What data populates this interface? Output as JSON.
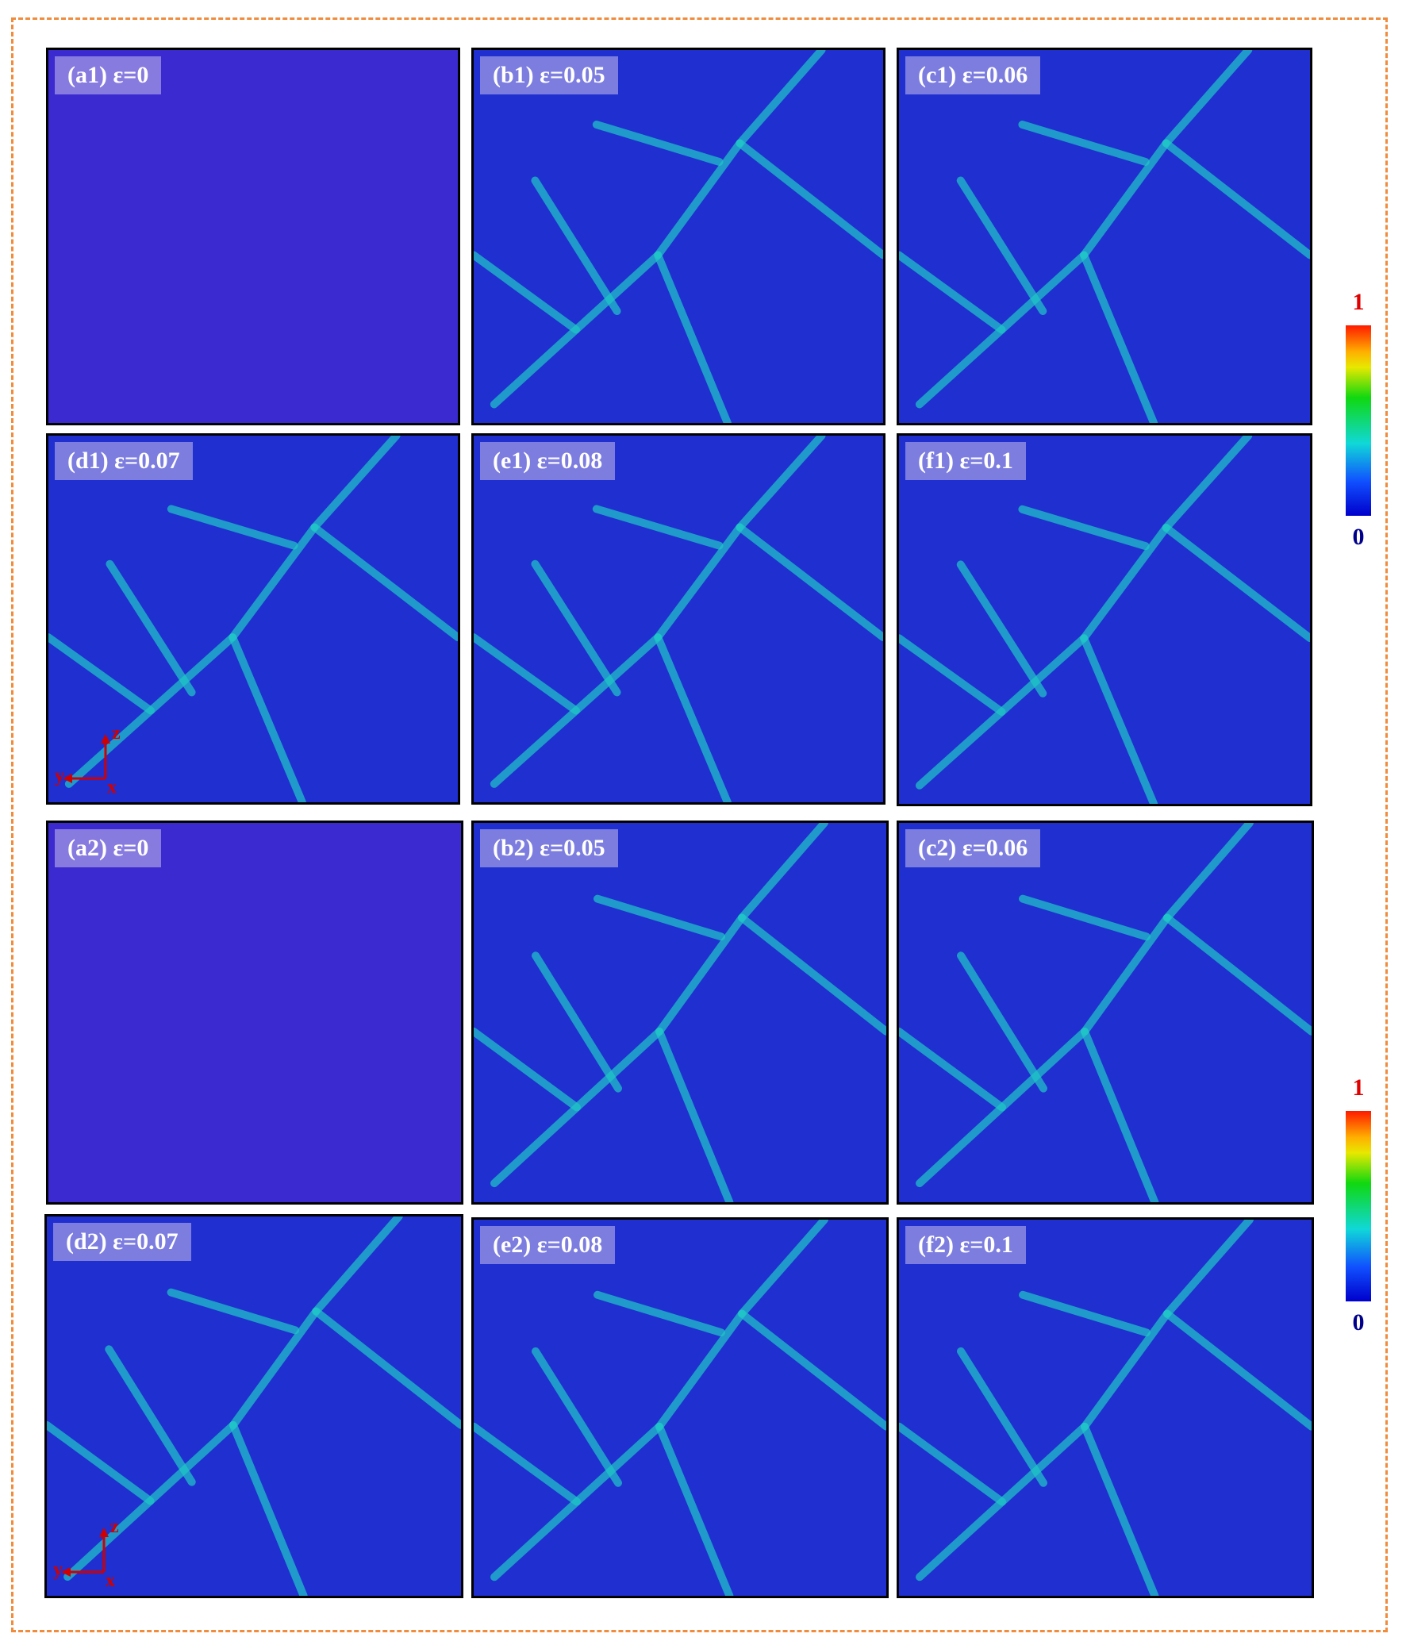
{
  "panels_group1": [
    {
      "label": "(a1) ε=0",
      "state": "initial"
    },
    {
      "label": "(b1) ε=0.05",
      "state": "boundaries"
    },
    {
      "label": "(c1) ε=0.06",
      "state": "boundaries"
    },
    {
      "label": "(d1) ε=0.07",
      "state": "boundaries"
    },
    {
      "label": "(e1) ε=0.08",
      "state": "boundaries"
    },
    {
      "label": "(f1) ε=0.1",
      "state": "boundaries"
    }
  ],
  "panels_group2": [
    {
      "label": "(a2) ε=0",
      "state": "initial"
    },
    {
      "label": "(b2) ε=0.05",
      "state": "boundaries"
    },
    {
      "label": "(c2) ε=0.06",
      "state": "boundaries"
    },
    {
      "label": "(d2) ε=0.07",
      "state": "boundaries"
    },
    {
      "label": "(e2) ε=0.08",
      "state": "boundaries"
    },
    {
      "label": "(f2) ε=0.1",
      "state": "boundaries"
    }
  ],
  "colorbar": {
    "max": "1",
    "min": "0"
  },
  "axes": {
    "z": "z",
    "y": "y",
    "x": "x"
  },
  "colors": {
    "frame": "#f08c3c",
    "background_atoms": "#1f2fd0",
    "initial_atoms": "#3a2ad0",
    "boundary": "#20c8c8",
    "high": "#ff1a00"
  }
}
